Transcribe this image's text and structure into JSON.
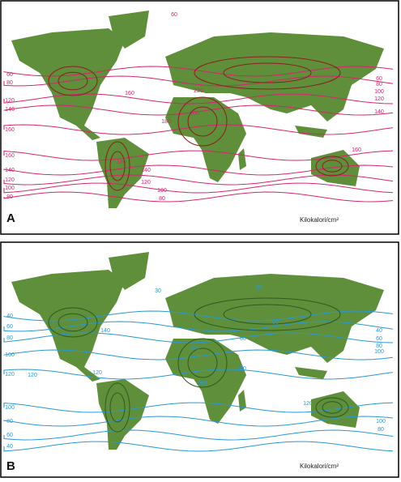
{
  "panels": [
    {
      "label": "A",
      "unit": "Kilokalori/cm²",
      "isolines": [
        60,
        60,
        80,
        120,
        140,
        160,
        160,
        140,
        120,
        100,
        80,
        60,
        80,
        100,
        120,
        140,
        160,
        180,
        200,
        220,
        160,
        180,
        140,
        120,
        100,
        80
      ]
    },
    {
      "label": "B",
      "unit": "Kilokalori/cm²",
      "isolines": [
        40,
        60,
        80,
        100,
        120,
        100,
        80,
        60,
        40,
        40,
        60,
        80,
        100,
        20,
        30,
        120,
        140,
        160,
        120,
        100,
        80,
        120,
        140,
        160,
        60,
        80
      ]
    }
  ]
}
